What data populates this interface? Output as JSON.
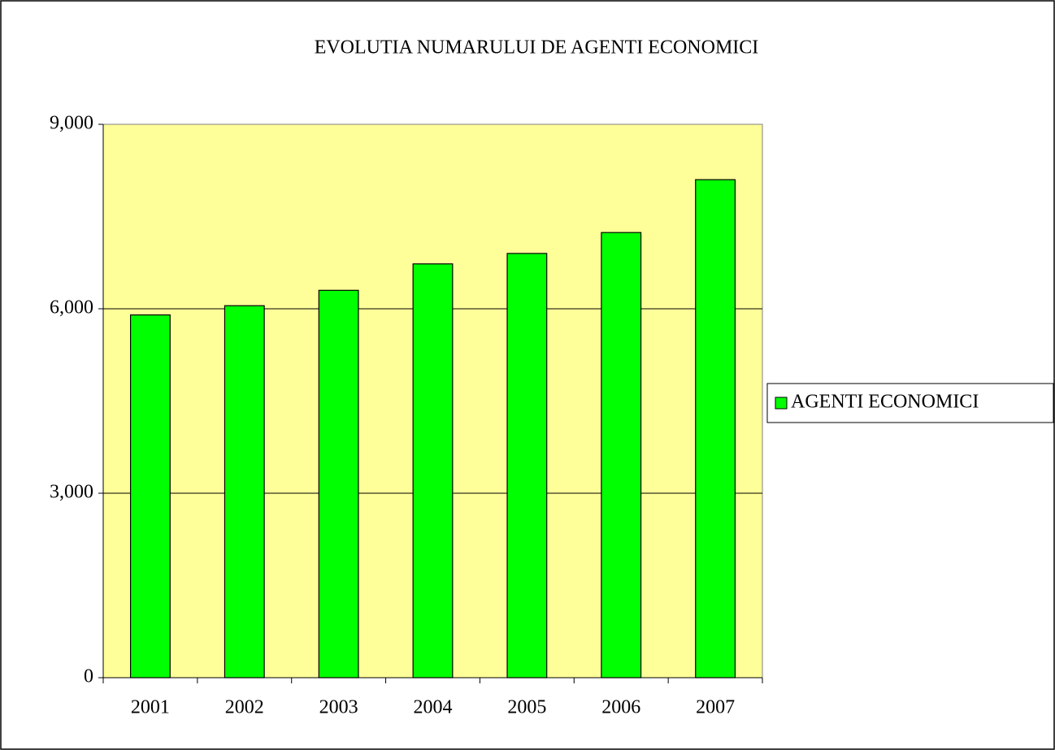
{
  "chart_data": {
    "type": "bar",
    "title": "EVOLUTIA NUMARULUI DE AGENTI ECONOMICI",
    "categories": [
      "2001",
      "2002",
      "2003",
      "2004",
      "2005",
      "2006",
      "2007"
    ],
    "series": [
      {
        "name": "AGENTI ECONOMICI",
        "color": "#00ff00",
        "values": [
          5900,
          6050,
          6300,
          6730,
          6900,
          7240,
          8100
        ]
      }
    ],
    "ylim": [
      0,
      9000
    ],
    "yticks": [
      0,
      {
        "value": 3000,
        "label": "3,000"
      },
      {
        "value": 6000,
        "label": "6,000"
      },
      {
        "value": 9000,
        "label": "9,000"
      }
    ],
    "grid": true,
    "legend": "right",
    "plot_background": "#ffff99"
  }
}
